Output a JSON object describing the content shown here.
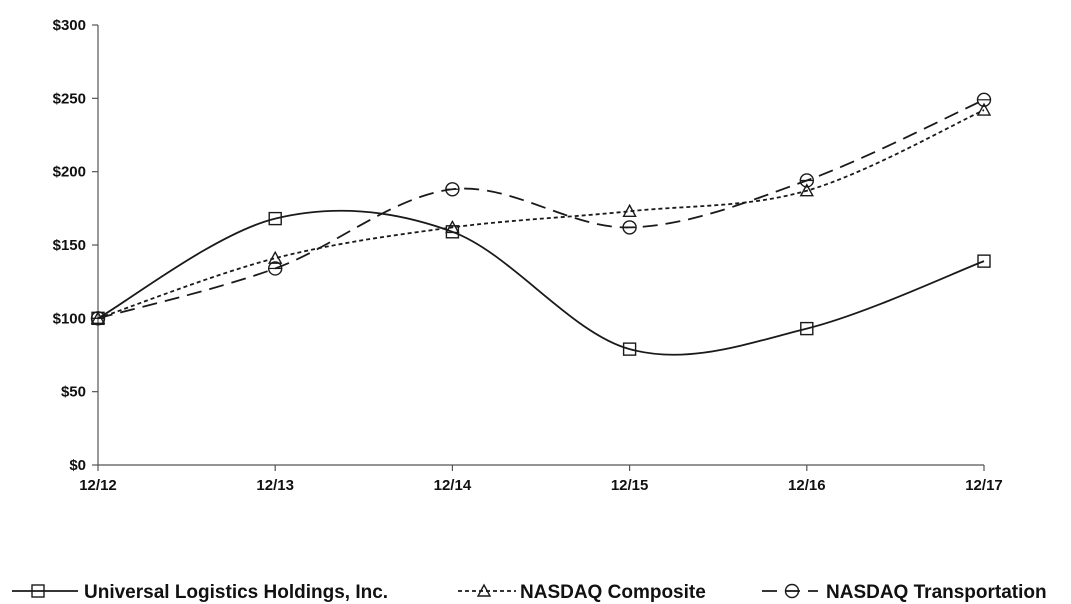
{
  "chart_data": {
    "type": "line",
    "categories": [
      "12/12",
      "12/13",
      "12/14",
      "12/15",
      "12/16",
      "12/17"
    ],
    "ylim": [
      0,
      300
    ],
    "yticks": [
      0,
      50,
      100,
      150,
      200,
      250,
      300
    ],
    "ytick_labels": [
      "$0",
      "$50",
      "$100",
      "$150",
      "$200",
      "$250",
      "$300"
    ],
    "grid": false,
    "legend_position": "bottom",
    "series": [
      {
        "name": "Universal Logistics Holdings, Inc.",
        "values": [
          100,
          168,
          159,
          79,
          93,
          139
        ],
        "marker": "square",
        "dash": "solid",
        "color": "#1a1a1a"
      },
      {
        "name": "NASDAQ Composite",
        "values": [
          100,
          141,
          162,
          173,
          187,
          242
        ],
        "marker": "triangle",
        "dash": "dotted",
        "color": "#1a1a1a"
      },
      {
        "name": "NASDAQ Transportation",
        "values": [
          100,
          134,
          188,
          162,
          194,
          249
        ],
        "marker": "circle",
        "dash": "dashed",
        "color": "#1a1a1a"
      }
    ]
  }
}
